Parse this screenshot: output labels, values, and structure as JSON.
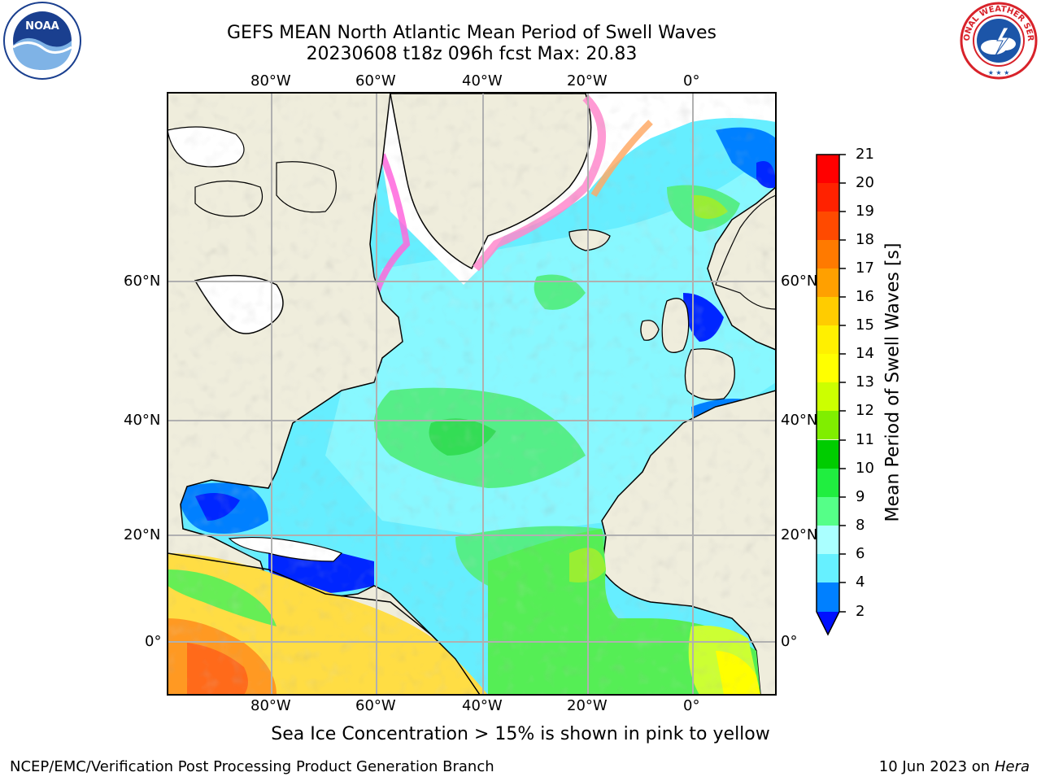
{
  "header": {
    "title_line1": "GEFS MEAN North Atlantic Mean Period of Swell Waves",
    "title_line2": "20230608 t18z 096h fcst   Max: 20.83"
  },
  "logos": {
    "left": {
      "text": "NOAA",
      "icon": "noaa-logo",
      "colors": [
        "#1a3f8f",
        "#7fb3e6",
        "#ffffff"
      ]
    },
    "right": {
      "text": "NATIONAL WEATHER SERVICE",
      "icon": "nws-logo",
      "colors": [
        "#d8222a",
        "#1c55a8",
        "#ffffff"
      ]
    }
  },
  "map": {
    "lon_labels": [
      "80°W",
      "60°W",
      "40°W",
      "20°W",
      "0°"
    ],
    "lat_labels": [
      "60°N",
      "40°N",
      "20°N",
      "0°"
    ],
    "colors": {
      "land": "#efeddc",
      "ice_free_grey": "#ffffff",
      "grid": "#b0b0b0",
      "coast": "#000000"
    }
  },
  "colorbar": {
    "label": "Mean Period of Swell Waves [s]",
    "ticks": [
      "2",
      "4",
      "6",
      "8",
      "9",
      "10",
      "11",
      "12",
      "13",
      "14",
      "15",
      "16",
      "17",
      "18",
      "19",
      "20",
      "21"
    ],
    "colors": [
      "#0026ff",
      "#0080ff",
      "#00e5ff",
      "#66f0ff",
      "#aaffff",
      "#55ff88",
      "#20ee40",
      "#00cc00",
      "#80ee00",
      "#ccff00",
      "#ffff00",
      "#fff000",
      "#ffcc00",
      "#ffa000",
      "#ff7a00",
      "#ff4800",
      "#ff1800",
      "#ff0000"
    ],
    "under_color": "#0010ff"
  },
  "note": "Sea Ice Concentration > 15% is shown in pink to yellow",
  "footer": {
    "left": "NCEP/EMC/Verification Post Processing Product Generation Branch",
    "date": "10 Jun 2023 on",
    "machine": "Hera"
  }
}
